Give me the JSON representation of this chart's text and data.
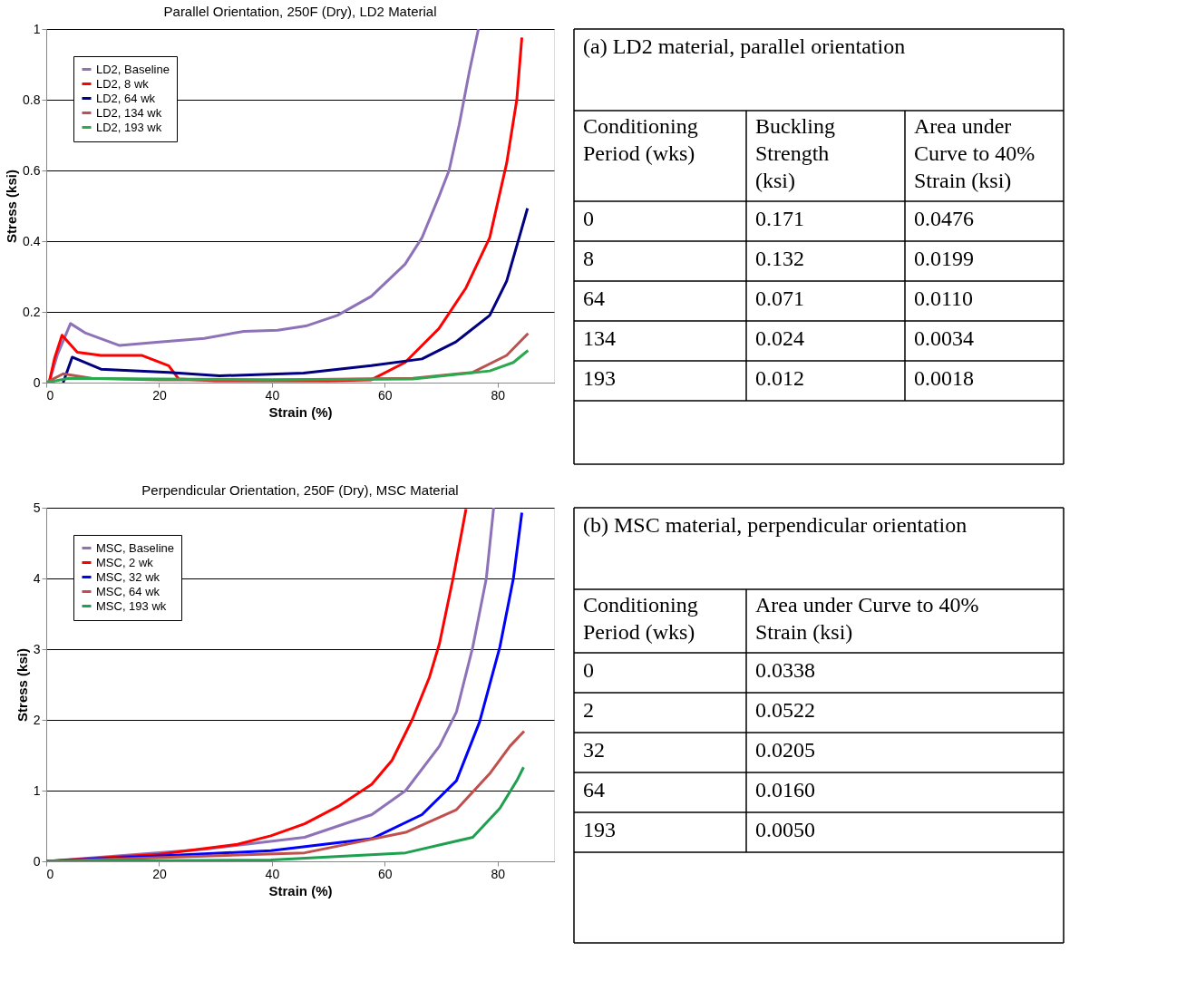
{
  "chart_data": [
    {
      "type": "line",
      "title": "Parallel Orientation,  250F (Dry),  LD2 Material",
      "xlabel": "Strain (%)",
      "ylabel": "Stress (ksi)",
      "xlim": [
        0,
        90
      ],
      "xticks": [
        0,
        20,
        40,
        60,
        80
      ],
      "ylim": [
        0,
        1
      ],
      "yticks": [
        0,
        0.2,
        0.4,
        0.6,
        0.8,
        1
      ],
      "grid": "y",
      "legend": "top left",
      "line_style": "solid",
      "series": [
        {
          "name": "LD2, Baseline",
          "color": "#8e72b8",
          "x": [
            0.5,
            2,
            4.3,
            7,
            13,
            20,
            28,
            35,
            41,
            46,
            51.6,
            57.6,
            63.6,
            66.6,
            69.6,
            71.4,
            73.2,
            75,
            76.6
          ],
          "values": [
            0,
            0.08,
            0.167,
            0.14,
            0.105,
            0.115,
            0.125,
            0.145,
            0.148,
            0.16,
            0.19,
            0.244,
            0.335,
            0.41,
            0.526,
            0.6,
            0.73,
            0.88,
            1.0
          ]
        },
        {
          "name": "LD2, 8 wk",
          "color": "#ff0000",
          "x": [
            0.5,
            1.5,
            2.8,
            5.5,
            9.7,
            16.9,
            21.7,
            23.5,
            30,
            40,
            50,
            57.6,
            63.6,
            69.6,
            74.4,
            78.6,
            81.6,
            83.4,
            84.3
          ],
          "values": [
            0,
            0.07,
            0.134,
            0.086,
            0.077,
            0.077,
            0.048,
            0.01,
            0.005,
            0.005,
            0.005,
            0.008,
            0.057,
            0.153,
            0.268,
            0.41,
            0.62,
            0.8,
            0.976
          ]
        },
        {
          "name": "LD2, 64 wk",
          "color": "#000080",
          "x": [
            3,
            4.6,
            9.7,
            21.7,
            30.7,
            45.6,
            57.6,
            66.6,
            72.6,
            78.6,
            81.6,
            84,
            85.3
          ],
          "values": [
            0,
            0.072,
            0.038,
            0.029,
            0.019,
            0.027,
            0.048,
            0.067,
            0.115,
            0.19,
            0.287,
            0.42,
            0.493
          ]
        },
        {
          "name": "LD2, 134 wk",
          "color": "#b85450",
          "x": [
            0,
            3,
            8,
            20,
            40,
            65,
            75.6,
            81.6,
            85.4
          ],
          "values": [
            0,
            0.025,
            0.012,
            0.008,
            0.008,
            0.012,
            0.029,
            0.077,
            0.139
          ]
        },
        {
          "name": "LD2, 193 wk",
          "color": "#2ca84f",
          "x": [
            0,
            4,
            20,
            40,
            65,
            78.6,
            82.8,
            85.4
          ],
          "values": [
            0,
            0.012,
            0.01,
            0.008,
            0.01,
            0.033,
            0.057,
            0.091
          ]
        }
      ]
    },
    {
      "type": "other",
      "title": "(a) LD2 material, parallel orientation",
      "categories": [
        "Conditioning Period (wks)",
        "Buckling Strength (ksi)",
        "Area under Curve to 40% Strain (ksi)"
      ],
      "cell_labels": [
        [
          "0",
          "0.171",
          "0.0476"
        ],
        [
          "8",
          "0.132",
          "0.0199"
        ],
        [
          "64",
          "0.071",
          "0.0110"
        ],
        [
          "134",
          "0.024",
          "0.0034"
        ],
        [
          "193",
          "0.012",
          "0.0018"
        ]
      ]
    },
    {
      "type": "line",
      "title": "Perpendicular Orientation,  250F (Dry), MSC Material",
      "xlabel": "Strain (%)",
      "ylabel": "Stress (ksi)",
      "xlim": [
        0,
        90
      ],
      "xticks": [
        0,
        20,
        40,
        60,
        80
      ],
      "ylim": [
        0,
        5
      ],
      "yticks": [
        0,
        1,
        2,
        3,
        4,
        5
      ],
      "grid": "y",
      "legend": "top left",
      "line_style": "solid",
      "series": [
        {
          "name": "MSC, Baseline",
          "color": "#8e72b8",
          "x": [
            0,
            27.9,
            45.8,
            57.7,
            63.7,
            69.7,
            72.7,
            75.6,
            78,
            79.3
          ],
          "values": [
            0,
            0.17,
            0.34,
            0.66,
            1.0,
            1.63,
            2.11,
            3.03,
            4.0,
            5.0
          ]
        },
        {
          "name": "MSC, 2 wk",
          "color": "#ff0000",
          "x": [
            0,
            20,
            33.9,
            39.8,
            45.8,
            51.8,
            57.7,
            61.3,
            64.9,
            67.9,
            69.7,
            72.1,
            74.4
          ],
          "values": [
            0,
            0.1,
            0.24,
            0.36,
            0.53,
            0.78,
            1.09,
            1.43,
            2.01,
            2.6,
            3.08,
            4.0,
            4.98
          ]
        },
        {
          "name": "MSC, 32 wk",
          "color": "#0000ff",
          "x": [
            0,
            39.8,
            57.7,
            66.6,
            72.7,
            76.8,
            80.4,
            82.8,
            84.3
          ],
          "values": [
            0,
            0.15,
            0.32,
            0.66,
            1.14,
            1.97,
            3.03,
            4.0,
            4.93
          ]
        },
        {
          "name": "MSC, 64 wk",
          "color": "#c0504d",
          "x": [
            0,
            45.8,
            63.7,
            72.7,
            78.6,
            82.2,
            84.7
          ],
          "values": [
            0,
            0.12,
            0.41,
            0.73,
            1.24,
            1.63,
            1.84
          ]
        },
        {
          "name": "MSC, 193 wk",
          "color": "#1fa050",
          "x": [
            0,
            39.8,
            63.7,
            75.6,
            80.4,
            83.4,
            84.6
          ],
          "values": [
            0,
            0.02,
            0.12,
            0.34,
            0.75,
            1.14,
            1.33
          ]
        }
      ]
    },
    {
      "type": "other",
      "title": "(b) MSC material, perpendicular orientation",
      "categories": [
        "Conditioning Period (wks)",
        "Area under Curve to 40% Strain (ksi)"
      ],
      "cell_labels": [
        [
          "0",
          "0.0338"
        ],
        [
          "2",
          "0.0522"
        ],
        [
          "32",
          "0.0205"
        ],
        [
          "64",
          "0.0160"
        ],
        [
          "193",
          "0.0050"
        ]
      ]
    }
  ]
}
